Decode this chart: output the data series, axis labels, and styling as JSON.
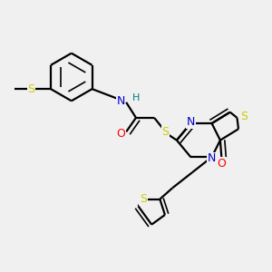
{
  "background_color": "#f0f0f0",
  "bond_color": "#000000",
  "atom_colors": {
    "S": "#cccc00",
    "N": "#0000cc",
    "O": "#ff0000",
    "H": "#008080",
    "C": "#000000"
  }
}
